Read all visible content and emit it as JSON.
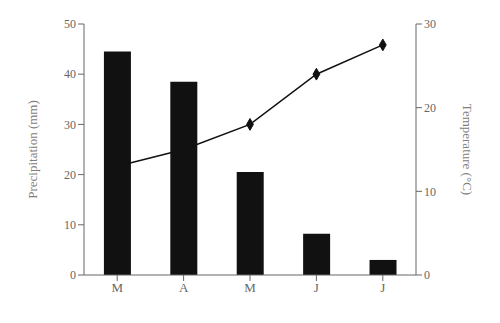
{
  "chart_data": {
    "type": "bar",
    "categories": [
      "M",
      "A",
      "M",
      "J",
      "J"
    ],
    "series": [
      {
        "type": "bar",
        "color": "#111111",
        "values": [
          44.5,
          38.5,
          20.5,
          8.2,
          3.0
        ]
      },
      {
        "type": "line",
        "color": "#111111",
        "marker": "diamond",
        "line_style": "solid",
        "axis": "y2",
        "values": [
          13.0,
          15.0,
          18.0,
          24.0,
          27.5
        ]
      }
    ],
    "ylabel": "Precipitation (mm)",
    "y2label": "Temperature (°C)",
    "ylim": [
      0,
      50
    ],
    "yticks": [
      0,
      10,
      20,
      30,
      40,
      50
    ],
    "y2lim": [
      0,
      30
    ],
    "y2ticks": [
      0,
      10,
      20,
      30
    ],
    "grid": false
  }
}
